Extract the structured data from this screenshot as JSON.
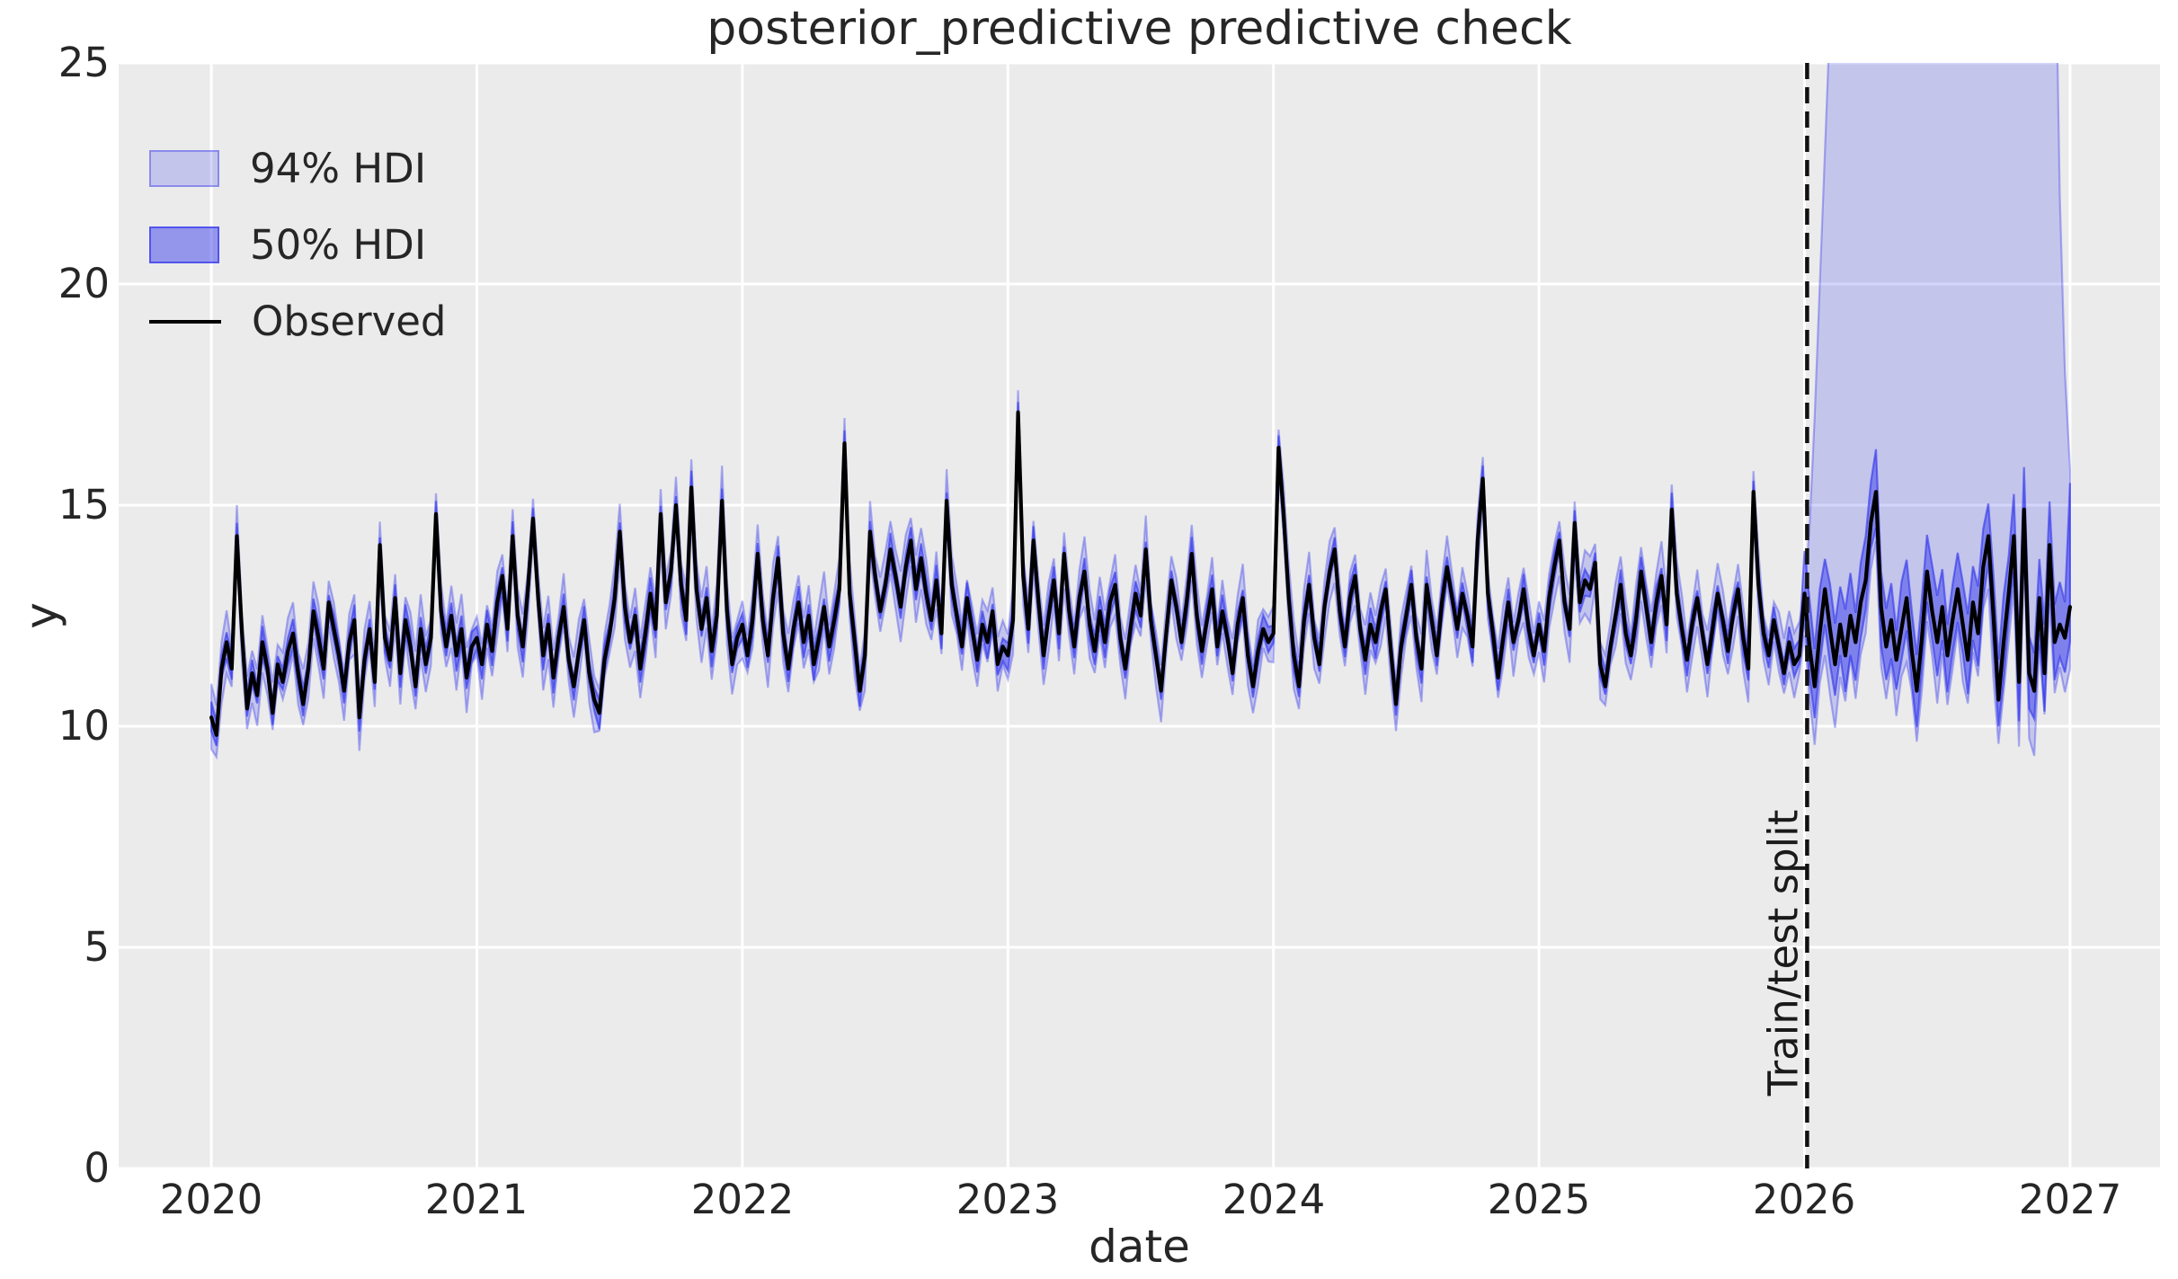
{
  "chart_data": {
    "type": "line",
    "title": "posterior_predictive predictive check",
    "xlabel": "date",
    "ylabel": "y",
    "xlim": [
      2019.651,
      2027.339
    ],
    "ylim": [
      0,
      25
    ],
    "x_ticks": [
      2020,
      2021,
      2022,
      2023,
      2024,
      2025,
      2026,
      2027
    ],
    "y_ticks": [
      0,
      5,
      10,
      15,
      20,
      25
    ],
    "grid": true,
    "legend_position": "upper left",
    "legend": [
      {
        "label": "94% HDI",
        "type": "patch",
        "alpha": 0.2
      },
      {
        "label": "50% HDI",
        "type": "patch",
        "alpha": 0.45
      },
      {
        "label": "Observed",
        "type": "line"
      }
    ],
    "annotation": {
      "label": "Train/test split",
      "x": 2026.01,
      "style": "dashed-vertical"
    },
    "series": {
      "x_start": 2020,
      "points_per_year": 52,
      "train_end_index": 312,
      "observed": [
        10.2,
        9.8,
        11.3,
        11.9,
        11.3,
        14.3,
        12.1,
        10.4,
        11.2,
        10.7,
        11.9,
        11.3,
        10.3,
        11.4,
        11.0,
        11.7,
        12.1,
        11.2,
        10.5,
        11.3,
        12.6,
        12.0,
        11.3,
        12.8,
        12.2,
        11.6,
        10.8,
        11.9,
        12.4,
        10.2,
        11.5,
        12.2,
        11.0,
        14.1,
        12.0,
        11.5,
        12.9,
        11.2,
        12.4,
        11.8,
        10.9,
        12.2,
        11.4,
        12.0,
        14.8,
        12.6,
        11.8,
        12.5,
        11.6,
        12.2,
        11.1,
        11.8,
        12.0,
        11.4,
        12.3,
        11.7,
        12.8,
        13.4,
        12.2,
        14.3,
        12.5,
        11.8,
        13.1,
        14.7,
        12.9,
        11.6,
        12.3,
        11.1,
        12.0,
        12.7,
        11.5,
        10.9,
        11.7,
        12.4,
        11.2,
        10.6,
        10.3,
        11.5,
        12.1,
        12.9,
        14.4,
        12.7,
        11.9,
        12.5,
        11.3,
        12.1,
        13.0,
        12.2,
        14.8,
        12.8,
        13.5,
        15.0,
        13.2,
        12.4,
        15.4,
        13.1,
        12.2,
        12.9,
        11.7,
        12.5,
        15.1,
        12.6,
        11.4,
        12.0,
        12.3,
        11.6,
        12.4,
        13.9,
        12.4,
        11.6,
        12.9,
        13.8,
        12.1,
        11.3,
        12.2,
        12.8,
        11.9,
        12.5,
        11.4,
        12.0,
        12.7,
        11.8,
        12.4,
        13.1,
        16.4,
        13.0,
        11.9,
        10.8,
        11.6,
        14.4,
        13.4,
        12.6,
        13.2,
        14.0,
        13.4,
        12.7,
        13.6,
        14.2,
        13.1,
        13.8,
        13.0,
        12.4,
        13.3,
        12.1,
        15.1,
        13.2,
        12.5,
        11.8,
        12.9,
        12.2,
        11.5,
        12.3,
        11.9,
        12.6,
        11.4,
        11.8,
        11.6,
        12.4,
        17.1,
        13.4,
        12.2,
        14.2,
        12.8,
        11.6,
        12.5,
        13.3,
        12.1,
        13.9,
        12.6,
        11.8,
        12.9,
        13.5,
        12.3,
        11.7,
        12.6,
        11.9,
        12.8,
        13.2,
        12.0,
        11.3,
        12.2,
        13.0,
        12.5,
        14.0,
        12.4,
        11.6,
        10.8,
        12.1,
        13.3,
        12.7,
        11.9,
        12.8,
        13.9,
        12.5,
        11.7,
        12.4,
        13.1,
        11.8,
        12.6,
        12.0,
        11.2,
        12.3,
        12.9,
        11.6,
        10.9,
        11.7,
        12.2,
        11.9,
        12.1,
        16.3,
        14.8,
        12.9,
        11.6,
        10.9,
        12.4,
        13.2,
        12.0,
        11.4,
        12.7,
        13.5,
        14.0,
        12.6,
        11.8,
        12.9,
        13.4,
        12.2,
        11.5,
        12.3,
        11.9,
        12.6,
        13.1,
        11.7,
        10.5,
        11.8,
        12.5,
        13.2,
        12.0,
        11.3,
        13.2,
        12.4,
        11.6,
        12.8,
        13.6,
        12.9,
        12.2,
        13.0,
        12.5,
        11.8,
        14.2,
        15.6,
        13.0,
        12.1,
        11.1,
        12.0,
        12.8,
        11.9,
        12.4,
        13.1,
        12.2,
        11.6,
        12.3,
        11.7,
        12.9,
        13.6,
        14.2,
        12.8,
        12.2,
        14.6,
        12.8,
        13.3,
        13.1,
        13.7,
        11.4,
        10.9,
        11.8,
        12.5,
        13.2,
        12.1,
        11.6,
        12.4,
        13.5,
        12.7,
        11.9,
        12.8,
        13.4,
        12.3,
        14.9,
        13.0,
        12.2,
        11.5,
        12.3,
        12.9,
        12.1,
        11.4,
        12.2,
        13.0,
        12.4,
        11.7,
        12.5,
        13.1,
        12.0,
        11.3,
        15.3,
        13.2,
        12.1,
        11.6,
        12.4,
        11.8,
        11.2,
        11.9,
        11.4,
        11.6,
        13.0,
        11.8,
        10.9,
        12.1,
        13.1,
        12.2,
        11.4,
        12.3,
        11.6,
        12.5,
        11.9,
        12.8,
        13.3,
        14.6,
        15.3,
        12.7,
        11.8,
        12.4,
        11.5,
        12.2,
        12.9,
        11.7,
        10.8,
        12.0,
        13.5,
        12.6,
        11.9,
        12.7,
        11.6,
        12.4,
        13.1,
        12.3,
        11.5,
        12.8,
        12.1,
        13.6,
        14.3,
        12.5,
        10.6,
        11.9,
        13.0,
        14.3,
        11.0,
        14.9,
        11.2,
        10.8,
        12.9,
        11.2,
        14.1,
        11.9,
        12.3,
        12.0,
        12.7
      ],
      "hdi94": {
        "train_halfwidth_base": 0.38,
        "train_halfwidth_jitter": 0.42,
        "test_lower_base": 0.9,
        "test_lower_jitter": 0.6,
        "test_upper": [
          13.0,
          14.5,
          17.0,
          20.0,
          23.0,
          26.0,
          29.0,
          31.0,
          33.0,
          34.0,
          35.0,
          35.0,
          36.0,
          36.0,
          37.0,
          37.0,
          37.0,
          38.0,
          38.0,
          38.0,
          39.0,
          39.0,
          39.0,
          39.0,
          40.0,
          40.0,
          40.0,
          40.0,
          40.0,
          41.0,
          41.0,
          41.0,
          41.0,
          41.0,
          41.0,
          42.0,
          42.0,
          42.0,
          42.0,
          42.0,
          41.0,
          41.0,
          41.0,
          40.0,
          40.0,
          39.0,
          38.0,
          37.0,
          35.0,
          29.0,
          22.0,
          18.0,
          15.8
        ]
      },
      "hdi50": {
        "train_halfwidth_base": 0.16,
        "train_halfwidth_jitter": 0.22,
        "test_lower_base": 0.55,
        "test_lower_jitter": 0.35,
        "test_upper_base": 0.65,
        "test_upper_jitter": 0.45,
        "final_upper": 15.5
      }
    },
    "colors": {
      "band_base": "#2a2eec",
      "band94_alpha": 0.2,
      "band94_edge_alpha": 0.35,
      "band50_alpha": 0.45,
      "band50_edge_alpha": 0.58,
      "observed": "#000000",
      "background": "#ebebeb",
      "grid": "#ffffff",
      "text": "#262626",
      "split_line": "#111111"
    }
  }
}
